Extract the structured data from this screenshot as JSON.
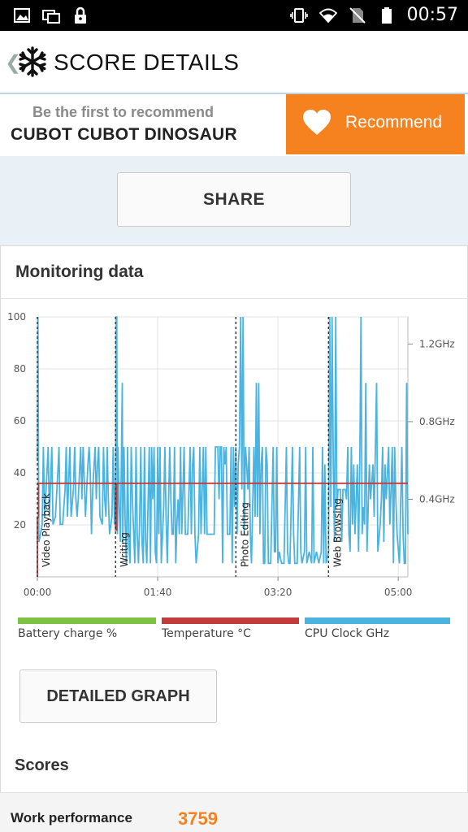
{
  "status_bar": {
    "time": "00:57",
    "left_icons": [
      "image-icon",
      "multi-window-icon",
      "lock-icon"
    ],
    "right_icons": [
      "vibrate-icon",
      "wifi-icon",
      "no-sim-icon",
      "battery-icon"
    ]
  },
  "app_bar": {
    "back_glyph": "❮",
    "title": "SCORE DETAILS"
  },
  "recommend": {
    "subtitle": "Be the first to recommend",
    "device": "CUBOT CUBOT DINOSAUR",
    "button_label": "Recommend"
  },
  "share_button": "SHARE",
  "monitoring": {
    "heading": "Monitoring data"
  },
  "chart_data": {
    "type": "line",
    "title": "",
    "x_ticks": [
      "00:00",
      "01:40",
      "03:20",
      "05:00"
    ],
    "x_tick_seconds": [
      0,
      100,
      200,
      300
    ],
    "y_left_ticks": [
      20,
      40,
      60,
      80,
      100
    ],
    "y_left_range": [
      0,
      100
    ],
    "y_right_ticks": [
      "0.4GHz",
      "0.8GHz",
      "1.2GHz"
    ],
    "y_right_values": [
      0.4,
      0.8,
      1.2
    ],
    "y_right_range": [
      0,
      1.34
    ],
    "x_range": [
      0,
      308
    ],
    "grid": true,
    "legend_placement": "bottom",
    "markers": [
      {
        "label": "Video Playback",
        "t": 0
      },
      {
        "label": "Writing",
        "t": 65
      },
      {
        "label": "Photo Editing",
        "t": 165
      },
      {
        "label": "Web Browsing",
        "t": 242
      }
    ],
    "series": [
      {
        "name": "Battery charge %",
        "color": "#7dc242",
        "values": []
      },
      {
        "name": "Temperature °C",
        "color": "#c43b3b",
        "points": [
          [
            0,
            0
          ],
          [
            0,
            23
          ],
          [
            1,
            23
          ],
          [
            1,
            36
          ],
          [
            65,
            36
          ],
          [
            65,
            18
          ],
          [
            66,
            18
          ],
          [
            66,
            36
          ],
          [
            308,
            36
          ]
        ]
      },
      {
        "name": "CPU Clock GHz",
        "color": "#4ab3e0",
        "points": [
          [
            0,
            0.6
          ],
          [
            0.5,
            1.34
          ],
          [
            1.2,
            0.18
          ],
          [
            2,
            0.2
          ],
          [
            4,
            0.27
          ],
          [
            5,
            0.67
          ],
          [
            6,
            0.31
          ],
          [
            8,
            0.54
          ],
          [
            9,
            0.67
          ],
          [
            10,
            0.31
          ],
          [
            12,
            0.67
          ],
          [
            13,
            0.27
          ],
          [
            15,
            0.31
          ],
          [
            17,
            0.54
          ],
          [
            18,
            0.67
          ],
          [
            19,
            0.27
          ],
          [
            21,
            0.27
          ],
          [
            23,
            0.45
          ],
          [
            24,
            0.67
          ],
          [
            25,
            0.31
          ],
          [
            27,
            0.67
          ],
          [
            28,
            0.31
          ],
          [
            30,
            0.45
          ],
          [
            31,
            0.67
          ],
          [
            32,
            0.4
          ],
          [
            33,
            0.31
          ],
          [
            34,
            0.4
          ],
          [
            36,
            0.67
          ],
          [
            37,
            0.4
          ],
          [
            38,
            0.67
          ],
          [
            40,
            0.31
          ],
          [
            42,
            0.58
          ],
          [
            43,
            0.67
          ],
          [
            44,
            0.54
          ],
          [
            45,
            0.22
          ],
          [
            46,
            0.45
          ],
          [
            48,
            0.67
          ],
          [
            49,
            0.4
          ],
          [
            50,
            0.58
          ],
          [
            51,
            0.67
          ],
          [
            52,
            0.31
          ],
          [
            54,
            0.27
          ],
          [
            55,
            0.67
          ],
          [
            56,
            0.4
          ],
          [
            57,
            0.31
          ],
          [
            58,
            0.67
          ],
          [
            59,
            0.4
          ],
          [
            60,
            0.22
          ],
          [
            62,
            0.31
          ],
          [
            63,
            0.67
          ],
          [
            64,
            0.27
          ],
          [
            65,
            0.4
          ],
          [
            65.6,
            1.34
          ],
          [
            66,
            1.34
          ],
          [
            66.5,
            0.22
          ],
          [
            67,
            0.67
          ],
          [
            68,
            0.36
          ],
          [
            69,
            0.18
          ],
          [
            70,
            0.67
          ],
          [
            70.6,
            1.0
          ],
          [
            71,
            0.18
          ],
          [
            72,
            0.67
          ],
          [
            73,
            0.27
          ],
          [
            74,
            0.07
          ],
          [
            75,
            0.67
          ],
          [
            76,
            0.18
          ],
          [
            77,
            0.07
          ],
          [
            78,
            0.67
          ],
          [
            79,
            0.4
          ],
          [
            81,
            0.07
          ],
          [
            82,
            0.67
          ],
          [
            83,
            0.22
          ],
          [
            84,
            0.07
          ],
          [
            85,
            0.27
          ],
          [
            86,
            0.67
          ],
          [
            87,
            0.18
          ],
          [
            88,
            0.07
          ],
          [
            89,
            0.67
          ],
          [
            90,
            0.18
          ],
          [
            91,
            0.07
          ],
          [
            93,
            0.67
          ],
          [
            94,
            0.07
          ],
          [
            95,
            0.67
          ],
          [
            96,
            0.4
          ],
          [
            97,
            0.67
          ],
          [
            98,
            0.13
          ],
          [
            99,
            0.07
          ],
          [
            100,
            0.67
          ],
          [
            101,
            0.22
          ],
          [
            102,
            0.67
          ],
          [
            103,
            0.07
          ],
          [
            105,
            0.36
          ],
          [
            106,
            0.67
          ],
          [
            107,
            0.31
          ],
          [
            108,
            0.07
          ],
          [
            110,
            0.67
          ],
          [
            111,
            0.4
          ],
          [
            112,
            0.22
          ],
          [
            113,
            0.22
          ],
          [
            114,
            0.67
          ],
          [
            115,
            0.07
          ],
          [
            116,
            0.27
          ],
          [
            117,
            0.4
          ],
          [
            118,
            0.22
          ],
          [
            119,
            0.67
          ],
          [
            120,
            0.22
          ],
          [
            122,
            0.67
          ],
          [
            123,
            0.22
          ],
          [
            125,
            0.22
          ],
          [
            127,
            0.67
          ],
          [
            128,
            0.22
          ],
          [
            129,
            0.58
          ],
          [
            130,
            0.67
          ],
          [
            131,
            0.22
          ],
          [
            132,
            0.07
          ],
          [
            134,
            0.22
          ],
          [
            135,
            0.67
          ],
          [
            136,
            0.22
          ],
          [
            138,
            0.67
          ],
          [
            139,
            0.22
          ],
          [
            140,
            0.67
          ],
          [
            141,
            0.22
          ],
          [
            143,
            0.22
          ],
          [
            145,
            0.22
          ],
          [
            147,
            0.22
          ],
          [
            148,
            0.67
          ],
          [
            150,
            0.67
          ],
          [
            151,
            0.4
          ],
          [
            152,
            0.67
          ],
          [
            153,
            0.67
          ],
          [
            154,
            0.07
          ],
          [
            155,
            0.67
          ],
          [
            156,
            0.58
          ],
          [
            157,
            0.67
          ],
          [
            158,
            0.22
          ],
          [
            160,
            0.22
          ],
          [
            161,
            0.67
          ],
          [
            162,
            0.07
          ],
          [
            163,
            0.67
          ],
          [
            164,
            0.36
          ],
          [
            165,
            0.67
          ],
          [
            166,
            0.22
          ],
          [
            167,
            0.58
          ],
          [
            168,
            0.67
          ],
          [
            169,
            1.34
          ],
          [
            170,
            0.45
          ],
          [
            171,
            1.34
          ],
          [
            172,
            0.22
          ],
          [
            173,
            0.67
          ],
          [
            174,
            0.58
          ],
          [
            175,
            0.45
          ],
          [
            176,
            0.67
          ],
          [
            177,
            0.22
          ],
          [
            178,
            0.07
          ],
          [
            180,
            0.67
          ],
          [
            181,
            0.31
          ],
          [
            182,
            1.0
          ],
          [
            183,
            0.31
          ],
          [
            184,
            1.0
          ],
          [
            185,
            0.22
          ],
          [
            186,
            0.58
          ],
          [
            187,
            0.67
          ],
          [
            188,
            0.07
          ],
          [
            189,
            0.07
          ],
          [
            190,
            0.67
          ],
          [
            191,
            0.58
          ],
          [
            192,
            0.07
          ],
          [
            194,
            0.07
          ],
          [
            196,
            0.67
          ],
          [
            197,
            0.13
          ],
          [
            198,
            0.13
          ],
          [
            199,
            0.67
          ],
          [
            200,
            0.07
          ],
          [
            201,
            0.13
          ],
          [
            203,
            0.07
          ],
          [
            205,
            0.07
          ],
          [
            207,
            0.67
          ],
          [
            208,
            0.13
          ],
          [
            209,
            0.07
          ],
          [
            210,
            0.07
          ],
          [
            212,
            0.67
          ],
          [
            213,
            0.22
          ],
          [
            214,
            0.07
          ],
          [
            216,
            0.07
          ],
          [
            218,
            0.67
          ],
          [
            219,
            0.13
          ],
          [
            220,
            0.07
          ],
          [
            222,
            0.13
          ],
          [
            223,
            0.67
          ],
          [
            224,
            0.07
          ],
          [
            226,
            0.13
          ],
          [
            228,
            0.07
          ],
          [
            229,
            0.67
          ],
          [
            230,
            0.07
          ],
          [
            232,
            0.13
          ],
          [
            234,
            0.07
          ],
          [
            236,
            0.13
          ],
          [
            237,
            0.67
          ],
          [
            238,
            0.07
          ],
          [
            239,
            0.58
          ],
          [
            240,
            0.07
          ],
          [
            242,
            0.13
          ],
          [
            243,
            1.34
          ],
          [
            244,
            0.36
          ],
          [
            245,
            1.34
          ],
          [
            246,
            0.58
          ],
          [
            247,
            0.18
          ],
          [
            248,
            1.34
          ],
          [
            249,
            0.36
          ],
          [
            250,
            0.45
          ],
          [
            252,
            0.45
          ],
          [
            253,
            0.18
          ],
          [
            254,
            0.45
          ],
          [
            255,
            0.45
          ],
          [
            256,
            0.45
          ],
          [
            257,
            0.4
          ],
          [
            258,
            0.67
          ],
          [
            259,
            0.22
          ],
          [
            260,
            0.13
          ],
          [
            261,
            0.67
          ],
          [
            262,
            0.27
          ],
          [
            263,
            0.58
          ],
          [
            264,
            0.22
          ],
          [
            266,
            0.58
          ],
          [
            267,
            0.13
          ],
          [
            268,
            0.58
          ],
          [
            269,
            1.34
          ],
          [
            270,
            0.22
          ],
          [
            271,
            0.36
          ],
          [
            272,
            0.27
          ],
          [
            273,
            1.0
          ],
          [
            274,
            0.13
          ],
          [
            276,
            0.58
          ],
          [
            277,
            0.4
          ],
          [
            279,
            0.58
          ],
          [
            280,
            0.31
          ],
          [
            282,
            1.0
          ],
          [
            283,
            0.13
          ],
          [
            285,
            0.27
          ],
          [
            286,
            0.4
          ],
          [
            287,
            0.67
          ],
          [
            288,
            0.18
          ],
          [
            289,
            0.58
          ],
          [
            290,
            0.4
          ],
          [
            292,
            0.67
          ],
          [
            293,
            0.27
          ],
          [
            294,
            0.45
          ],
          [
            295,
            0.67
          ],
          [
            296,
            0.07
          ],
          [
            297,
            0.67
          ],
          [
            298,
            0.4
          ],
          [
            299,
            0.22
          ],
          [
            301,
            0.07
          ],
          [
            303,
            0.67
          ],
          [
            304,
            0.22
          ],
          [
            305,
            0.07
          ],
          [
            306,
            0.07
          ],
          [
            307,
            1.0
          ],
          [
            308,
            0.22
          ]
        ]
      }
    ]
  },
  "legend": [
    {
      "label": "Battery charge %",
      "color": "#7dc242"
    },
    {
      "label": "Temperature °C",
      "color": "#c43b3b"
    },
    {
      "label": "CPU Clock GHz",
      "color": "#4ab3e0"
    }
  ],
  "detailed_graph_button": "DETAILED GRAPH",
  "scores": {
    "heading": "Scores",
    "rows": [
      {
        "name": "Work performance",
        "value": "3759"
      }
    ]
  }
}
